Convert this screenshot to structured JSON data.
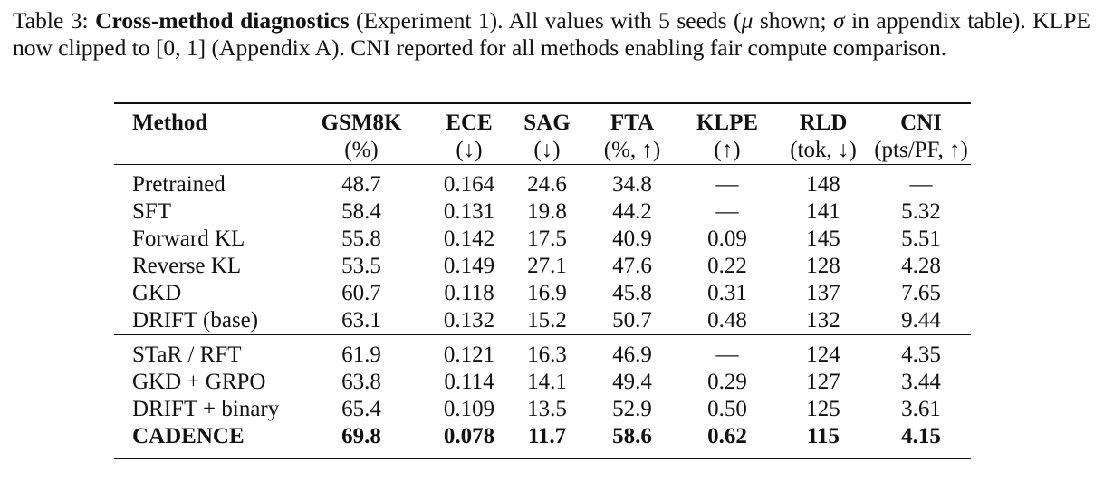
{
  "caption": {
    "label": "Table 3: ",
    "title": "Cross-method diagnostics",
    "text_part1": " (Experiment 1).  All values with 5 seeds (",
    "mu": "μ",
    "text_part2": " shown; ",
    "sigma": "σ",
    "text_part3": " in appendix table). KLPE now clipped to ",
    "interval": "[0, 1]",
    "text_part4": " (Appendix A). CNI reported for all methods enabling fair compute comparison."
  },
  "table": {
    "headers": [
      {
        "name": "Method",
        "unit": ""
      },
      {
        "name": "GSM8K",
        "unit": "(%)"
      },
      {
        "name": "ECE",
        "unit": "(↓)"
      },
      {
        "name": "SAG",
        "unit": "(↓)"
      },
      {
        "name": "FTA",
        "unit": "(%, ↑)"
      },
      {
        "name": "KLPE",
        "unit": "(↑)"
      },
      {
        "name": "RLD",
        "unit": "(tok, ↓)"
      },
      {
        "name": "CNI",
        "unit": "(pts/PF, ↑)"
      }
    ],
    "group1": [
      [
        "Pretrained",
        "48.7",
        "0.164",
        "24.6",
        "34.8",
        "—",
        "148",
        "—"
      ],
      [
        "SFT",
        "58.4",
        "0.131",
        "19.8",
        "44.2",
        "—",
        "141",
        "5.32"
      ],
      [
        "Forward KL",
        "55.8",
        "0.142",
        "17.5",
        "40.9",
        "0.09",
        "145",
        "5.51"
      ],
      [
        "Reverse KL",
        "53.5",
        "0.149",
        "27.1",
        "47.6",
        "0.22",
        "128",
        "4.28"
      ],
      [
        "GKD",
        "60.7",
        "0.118",
        "16.9",
        "45.8",
        "0.31",
        "137",
        "7.65"
      ],
      [
        "DRIFT (base)",
        "63.1",
        "0.132",
        "15.2",
        "50.7",
        "0.48",
        "132",
        "9.44"
      ]
    ],
    "group2": [
      [
        "STaR / RFT",
        "61.9",
        "0.121",
        "16.3",
        "46.9",
        "—",
        "124",
        "4.35"
      ],
      [
        "GKD + GRPO",
        "63.8",
        "0.114",
        "14.1",
        "49.4",
        "0.29",
        "127",
        "3.44"
      ],
      [
        "DRIFT + binary",
        "65.4",
        "0.109",
        "13.5",
        "52.9",
        "0.50",
        "125",
        "3.61"
      ],
      [
        "CADENCE",
        "69.8",
        "0.078",
        "11.7",
        "58.6",
        "0.62",
        "115",
        "4.15"
      ]
    ],
    "bold_row": "CADENCE"
  }
}
